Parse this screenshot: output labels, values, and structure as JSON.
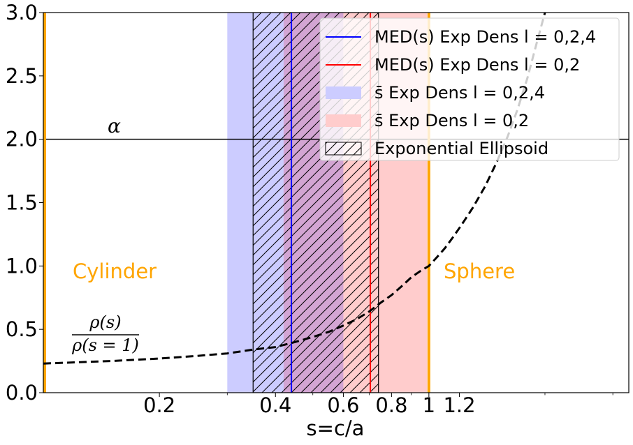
{
  "chart_data": {
    "type": "line",
    "xscale": "log",
    "xlim": [
      0.1,
      3.3
    ],
    "ylim": [
      0.0,
      3.0
    ],
    "xlabel": "s=c/a",
    "ylabel": "",
    "xticks": [
      {
        "value": 0.2,
        "label": "0.2"
      },
      {
        "value": 0.4,
        "label": "0.4"
      },
      {
        "value": 0.6,
        "label": "0.6"
      },
      {
        "value": 0.8,
        "label": "0.8"
      },
      {
        "value": 1.0,
        "label": "1"
      },
      {
        "value": 1.2,
        "label": "1.2"
      }
    ],
    "minor_xticks": [
      0.3,
      0.5,
      0.7,
      0.9,
      2.0,
      3.0
    ],
    "yticks": [
      {
        "value": 0.0,
        "label": "0.0"
      },
      {
        "value": 0.5,
        "label": "0.5"
      },
      {
        "value": 1.0,
        "label": "1.0"
      },
      {
        "value": 1.5,
        "label": "1.5"
      },
      {
        "value": 2.0,
        "label": "2.0"
      },
      {
        "value": 2.5,
        "label": "2.5"
      },
      {
        "value": 3.0,
        "label": "3.0"
      }
    ],
    "grid": false,
    "legend_position": "top-right",
    "colors": {
      "blue": "#0000ff",
      "red": "#ff0000",
      "blue_band": "#ccccff",
      "red_band": "#ffcccc",
      "overlap_band": "#d3a5d3",
      "orange": "#ffa500",
      "curve": "#000000"
    },
    "curve": {
      "name": "ρ(s) / ρ(s=1)",
      "style": "dashed",
      "x": [
        0.1,
        0.15,
        0.2,
        0.25,
        0.3,
        0.35,
        0.4,
        0.45,
        0.5,
        0.55,
        0.6,
        0.65,
        0.7,
        0.75,
        0.8,
        0.85,
        0.9,
        0.95,
        1.0,
        1.05,
        1.1,
        1.15,
        1.2,
        1.25,
        1.3,
        1.4,
        1.5,
        1.6,
        1.7,
        1.8,
        1.9,
        2.0,
        2.05
      ],
      "y": [
        0.23,
        0.25,
        0.27,
        0.29,
        0.31,
        0.34,
        0.36,
        0.4,
        0.44,
        0.48,
        0.53,
        0.58,
        0.64,
        0.71,
        0.77,
        0.84,
        0.91,
        0.96,
        1.0,
        1.07,
        1.14,
        1.22,
        1.3,
        1.38,
        1.46,
        1.63,
        1.82,
        2.02,
        2.24,
        2.48,
        2.75,
        3.0,
        3.05
      ]
    },
    "hline": {
      "y": 2.0,
      "label": "α"
    },
    "vlines_orange": [
      0.1,
      1.0
    ],
    "bands": [
      {
        "name": "s̄ Exp Dens l = 0,2,4",
        "x0": 0.3,
        "x1": 0.6,
        "color": "#ccccff"
      },
      {
        "name": "s̄ Exp Dens l = 0,2",
        "x0": 0.42,
        "x1": 0.99,
        "color": "#ffcccc"
      }
    ],
    "hatched_region": {
      "name": "Exponential Ellipsoid",
      "x0": 0.35,
      "x1": 0.74
    },
    "lines": [
      {
        "name": "MED(s) Exp Dens l = 0,2,4",
        "x": 0.44,
        "color": "#0000ff"
      },
      {
        "name": "MED(s) Exp Dens l = 0,2",
        "x": 0.705,
        "color": "#ff0000"
      }
    ],
    "annotations": {
      "cylinder": "Cylinder",
      "sphere": "Sphere",
      "alpha": "α",
      "ratio_numerator": "ρ(s)",
      "ratio_denominator": "ρ(s = 1)"
    },
    "legend": [
      {
        "kind": "line",
        "color": "#0000ff",
        "label": " MED(s) Exp Dens l = 0,2,4"
      },
      {
        "kind": "line",
        "color": "#ff0000",
        "label": " MED(s) Exp Dens l = 0,2"
      },
      {
        "kind": "patch",
        "color": "#ccccff",
        "label": "s̄ Exp Dens l = 0,2,4"
      },
      {
        "kind": "patch",
        "color": "#ffcccc",
        "label": "s̄ Exp Dens l = 0,2"
      },
      {
        "kind": "hatch",
        "color": "#ffffff",
        "label": "Exponential Ellipsoid"
      }
    ]
  }
}
